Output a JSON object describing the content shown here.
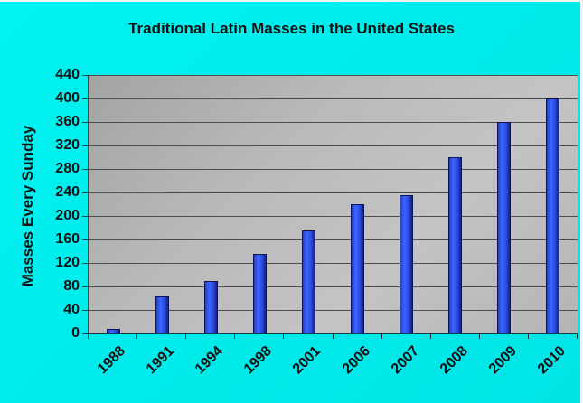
{
  "chart_data": {
    "type": "bar",
    "title": "Traditional Latin Masses in the United States",
    "xlabel": "",
    "ylabel": "Masses Every Sunday",
    "categories": [
      "1988",
      "1991",
      "1994",
      "1998",
      "2001",
      "2006",
      "2007",
      "2008",
      "2009",
      "2010"
    ],
    "values": [
      8,
      63,
      90,
      135,
      175,
      220,
      235,
      300,
      360,
      400
    ],
    "ylim": [
      0,
      440
    ],
    "yticks": [
      0,
      40,
      80,
      120,
      160,
      200,
      240,
      280,
      320,
      360,
      400,
      440
    ],
    "grid": true,
    "legend": null,
    "colors": {
      "bar": "#2f55f0",
      "plot_bg": "#bdbdbd",
      "frame_bg": "#00eeee"
    }
  },
  "labels": {
    "title": "Traditional Latin Masses in the United States",
    "ylabel": "Masses Every Sunday"
  }
}
